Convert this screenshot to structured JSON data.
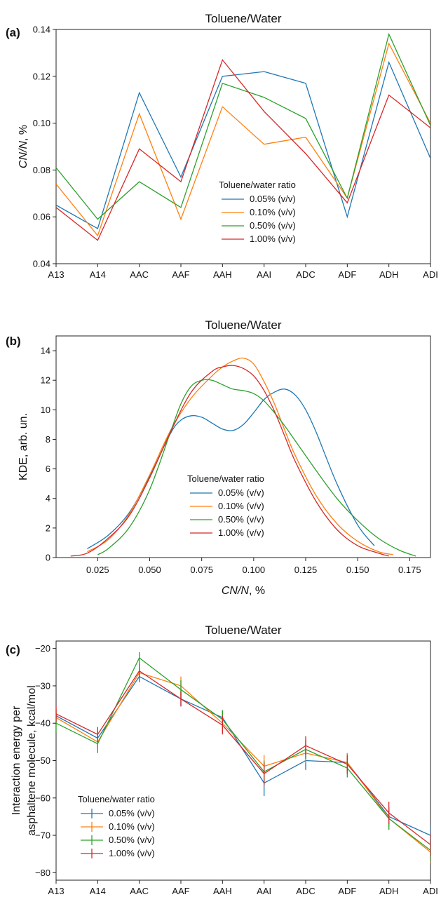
{
  "chart_data": [
    {
      "type": "line",
      "panel_label": "(a)",
      "title": "Toluene/Water",
      "xlabel": "",
      "ylabel": "CN/N, %",
      "categories": [
        "A13",
        "A14",
        "AAC",
        "AAF",
        "AAH",
        "AAI",
        "ADC",
        "ADF",
        "ADH",
        "ADI"
      ],
      "ylim": [
        0.04,
        0.14
      ],
      "yticks": [
        "0.04",
        "0.06",
        "0.08",
        "0.10",
        "0.12",
        "0.14"
      ],
      "legend_title": "Toluene/water ratio",
      "legend_position": "center-right",
      "series": [
        {
          "name": "0.05% (v/v)",
          "color": "#1f77b4",
          "values": [
            0.065,
            0.055,
            0.113,
            0.077,
            0.12,
            0.122,
            0.117,
            0.06,
            0.126,
            0.085
          ]
        },
        {
          "name": "0.10% (v/v)",
          "color": "#ff7f0e",
          "values": [
            0.074,
            0.052,
            0.104,
            0.059,
            0.107,
            0.091,
            0.094,
            0.068,
            0.134,
            0.1
          ]
        },
        {
          "name": "0.50% (v/v)",
          "color": "#2ca02c",
          "values": [
            0.081,
            0.059,
            0.075,
            0.064,
            0.117,
            0.111,
            0.102,
            0.068,
            0.138,
            0.099
          ]
        },
        {
          "name": "1.00% (v/v)",
          "color": "#d62728",
          "values": [
            0.064,
            0.05,
            0.089,
            0.075,
            0.127,
            0.105,
            0.087,
            0.066,
            0.112,
            0.098
          ]
        }
      ]
    },
    {
      "type": "line",
      "panel_label": "(b)",
      "title": "Toluene/Water",
      "xlabel": "CN/N, %",
      "ylabel": "KDE, arb. un.",
      "xlim": [
        0.005,
        0.185
      ],
      "ylim": [
        0,
        15
      ],
      "xticks": [
        0.025,
        0.05,
        0.075,
        0.1,
        0.125,
        0.15,
        0.175
      ],
      "xtick_labels": [
        "0.025",
        "0.050",
        "0.075",
        "0.100",
        "0.125",
        "0.150",
        "0.175"
      ],
      "yticks": [
        0,
        2,
        4,
        6,
        8,
        10,
        12,
        14
      ],
      "ytick_labels": [
        "0",
        "2",
        "4",
        "6",
        "8",
        "10",
        "12",
        "14"
      ],
      "legend_title": "Toluene/water ratio",
      "legend_position": "lower-center",
      "series": [
        {
          "name": "0.05% (v/v)",
          "color": "#1f77b4",
          "x": [
            0.02,
            0.03,
            0.04,
            0.05,
            0.06,
            0.065,
            0.07,
            0.075,
            0.08,
            0.085,
            0.09,
            0.095,
            0.1,
            0.105,
            0.11,
            0.115,
            0.12,
            0.125,
            0.13,
            0.14,
            0.15,
            0.158
          ],
          "y": [
            0.6,
            1.5,
            3.0,
            5.5,
            8.4,
            9.3,
            9.6,
            9.5,
            9.1,
            8.7,
            8.6,
            9.0,
            9.8,
            10.7,
            11.2,
            11.4,
            11.0,
            10.0,
            8.5,
            5.0,
            2.2,
            0.8
          ]
        },
        {
          "name": "0.10% (v/v)",
          "color": "#ff7f0e",
          "x": [
            0.02,
            0.03,
            0.04,
            0.05,
            0.06,
            0.07,
            0.08,
            0.085,
            0.09,
            0.095,
            0.1,
            0.105,
            0.11,
            0.115,
            0.12,
            0.13,
            0.14,
            0.15,
            0.16,
            0.167
          ],
          "y": [
            0.4,
            1.2,
            2.9,
            5.6,
            8.6,
            10.8,
            12.3,
            12.9,
            13.3,
            13.5,
            13.1,
            11.9,
            10.4,
            8.6,
            6.9,
            4.2,
            2.3,
            1.1,
            0.4,
            0.2
          ]
        },
        {
          "name": "0.50% (v/v)",
          "color": "#2ca02c",
          "x": [
            0.025,
            0.03,
            0.04,
            0.05,
            0.06,
            0.065,
            0.07,
            0.075,
            0.08,
            0.085,
            0.09,
            0.095,
            0.1,
            0.105,
            0.11,
            0.115,
            0.12,
            0.13,
            0.14,
            0.15,
            0.16,
            0.17,
            0.178
          ],
          "y": [
            0.2,
            0.6,
            2.0,
            4.6,
            8.5,
            10.4,
            11.6,
            12.0,
            12.0,
            11.7,
            11.4,
            11.3,
            11.1,
            10.6,
            9.8,
            8.9,
            7.9,
            5.9,
            4.0,
            2.5,
            1.3,
            0.5,
            0.1
          ]
        },
        {
          "name": "1.00% (v/v)",
          "color": "#d62728",
          "x": [
            0.012,
            0.02,
            0.03,
            0.04,
            0.05,
            0.06,
            0.07,
            0.08,
            0.085,
            0.09,
            0.095,
            0.1,
            0.105,
            0.11,
            0.115,
            0.12,
            0.13,
            0.14,
            0.15,
            0.16,
            0.165
          ],
          "y": [
            0.1,
            0.3,
            1.3,
            2.8,
            5.4,
            8.5,
            11.2,
            12.6,
            12.9,
            13.0,
            12.8,
            12.3,
            11.3,
            9.9,
            8.2,
            6.5,
            3.8,
            1.9,
            0.8,
            0.3,
            0.1
          ]
        }
      ]
    },
    {
      "type": "line",
      "panel_label": "(c)",
      "title": "Toluene/Water",
      "xlabel": "",
      "ylabel": [
        "Interaction energy per",
        "asphaltene molecule, kcal/mol"
      ],
      "categories": [
        "A13",
        "A14",
        "AAC",
        "AAF",
        "AAH",
        "AAI",
        "ADC",
        "ADF",
        "ADH",
        "ADI"
      ],
      "ylim": [
        -82,
        -18
      ],
      "yticks": [
        -80,
        -70,
        -60,
        -50,
        -40,
        -30,
        -20
      ],
      "ytick_labels": [
        "−80",
        "−70",
        "−60",
        "−50",
        "−40",
        "−30",
        "−20"
      ],
      "legend_title": "Toluene/water ratio",
      "legend_position": "lower-left",
      "error_bars": true,
      "series": [
        {
          "name": "0.05% (v/v)",
          "color": "#1f77b4",
          "values": [
            -38,
            -44,
            -27.5,
            -33.5,
            -38.5,
            -56,
            -50,
            -50.5,
            -65,
            -70
          ],
          "errors": [
            2,
            2,
            1.5,
            2,
            2,
            3.5,
            2.5,
            2.5,
            2.5,
            2.5
          ]
        },
        {
          "name": "0.10% (v/v)",
          "color": "#ff7f0e",
          "values": [
            -38.5,
            -45,
            -26.5,
            -30,
            -40,
            -51.5,
            -48,
            -50.5,
            -65.5,
            -74.5
          ],
          "errors": [
            2,
            2,
            1.5,
            2.5,
            2.5,
            3,
            2.5,
            2.5,
            3,
            3
          ]
        },
        {
          "name": "0.50% (v/v)",
          "color": "#2ca02c",
          "values": [
            -40,
            -45.5,
            -22.5,
            -31,
            -39,
            -53,
            -47,
            -52,
            -65.5,
            -74
          ],
          "errors": [
            2.5,
            2.5,
            1.5,
            2.5,
            2.5,
            3,
            2.5,
            2.5,
            3,
            3
          ]
        },
        {
          "name": "1.00% (v/v)",
          "color": "#d62728",
          "values": [
            -37.5,
            -43,
            -26,
            -33.5,
            -40.5,
            -53.5,
            -46,
            -51,
            -64,
            -72.5
          ],
          "errors": [
            2,
            2,
            2,
            2,
            2.5,
            3,
            2.5,
            2.5,
            3,
            3
          ]
        }
      ]
    }
  ]
}
